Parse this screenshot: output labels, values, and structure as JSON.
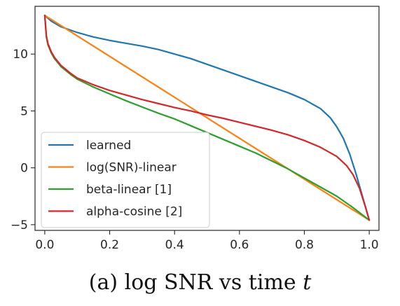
{
  "chart_data": {
    "type": "line",
    "title": "",
    "xlabel": "",
    "ylabel": "",
    "xlim": [
      -0.03,
      1.03
    ],
    "ylim": [
      -5.5,
      14.2
    ],
    "x_ticks": [
      0.0,
      0.2,
      0.4,
      0.6,
      0.8,
      1.0
    ],
    "x_tick_labels": [
      "0.0",
      "0.2",
      "0.4",
      "0.6",
      "0.8",
      "1.0"
    ],
    "y_ticks": [
      -5,
      0,
      5,
      10
    ],
    "y_tick_labels": [
      "−5",
      "0",
      "5",
      "10"
    ],
    "grid": false,
    "legend_position": "lower-left",
    "series": [
      {
        "name": "learned",
        "color": "#1f77b4",
        "points": [
          [
            0.0,
            13.4
          ],
          [
            0.02,
            12.9
          ],
          [
            0.05,
            12.4
          ],
          [
            0.1,
            11.9
          ],
          [
            0.15,
            11.5
          ],
          [
            0.2,
            11.2
          ],
          [
            0.25,
            10.95
          ],
          [
            0.3,
            10.7
          ],
          [
            0.35,
            10.4
          ],
          [
            0.4,
            10.0
          ],
          [
            0.45,
            9.6
          ],
          [
            0.5,
            9.1
          ],
          [
            0.55,
            8.6
          ],
          [
            0.6,
            8.1
          ],
          [
            0.65,
            7.6
          ],
          [
            0.7,
            7.1
          ],
          [
            0.75,
            6.6
          ],
          [
            0.8,
            6.0
          ],
          [
            0.85,
            5.2
          ],
          [
            0.88,
            4.4
          ],
          [
            0.9,
            3.6
          ],
          [
            0.92,
            2.6
          ],
          [
            0.94,
            1.2
          ],
          [
            0.96,
            -0.6
          ],
          [
            0.98,
            -2.6
          ],
          [
            0.99,
            -3.6
          ],
          [
            1.0,
            -4.6
          ]
        ]
      },
      {
        "name": "log(SNR)-linear",
        "color": "#ff7f0e",
        "points": [
          [
            0.0,
            13.4
          ],
          [
            1.0,
            -4.6
          ]
        ]
      },
      {
        "name": "beta-linear [1]",
        "color": "#2ca02c",
        "points": [
          [
            0.0,
            13.4
          ],
          [
            0.005,
            11.5
          ],
          [
            0.01,
            10.8
          ],
          [
            0.02,
            10.1
          ],
          [
            0.03,
            9.6
          ],
          [
            0.05,
            8.9
          ],
          [
            0.08,
            8.2
          ],
          [
            0.1,
            7.8
          ],
          [
            0.15,
            7.1
          ],
          [
            0.2,
            6.5
          ],
          [
            0.25,
            5.9
          ],
          [
            0.3,
            5.35
          ],
          [
            0.35,
            4.8
          ],
          [
            0.4,
            4.3
          ],
          [
            0.45,
            3.7
          ],
          [
            0.5,
            3.1
          ],
          [
            0.55,
            2.5
          ],
          [
            0.6,
            1.9
          ],
          [
            0.65,
            1.3
          ],
          [
            0.7,
            0.6
          ],
          [
            0.75,
            -0.1
          ],
          [
            0.8,
            -0.9
          ],
          [
            0.85,
            -1.7
          ],
          [
            0.9,
            -2.5
          ],
          [
            0.95,
            -3.5
          ],
          [
            1.0,
            -4.6
          ]
        ]
      },
      {
        "name": "alpha-cosine [2]",
        "color": "#d62728",
        "points": [
          [
            0.0,
            13.4
          ],
          [
            0.005,
            11.6
          ],
          [
            0.01,
            10.9
          ],
          [
            0.02,
            10.2
          ],
          [
            0.03,
            9.7
          ],
          [
            0.05,
            9.0
          ],
          [
            0.08,
            8.3
          ],
          [
            0.1,
            7.9
          ],
          [
            0.15,
            7.3
          ],
          [
            0.2,
            6.8
          ],
          [
            0.25,
            6.4
          ],
          [
            0.3,
            6.0
          ],
          [
            0.35,
            5.65
          ],
          [
            0.4,
            5.3
          ],
          [
            0.45,
            5.0
          ],
          [
            0.5,
            4.65
          ],
          [
            0.55,
            4.35
          ],
          [
            0.6,
            4.0
          ],
          [
            0.65,
            3.65
          ],
          [
            0.7,
            3.3
          ],
          [
            0.75,
            2.9
          ],
          [
            0.8,
            2.4
          ],
          [
            0.85,
            1.8
          ],
          [
            0.9,
            1.0
          ],
          [
            0.93,
            0.2
          ],
          [
            0.95,
            -0.6
          ],
          [
            0.97,
            -1.8
          ],
          [
            0.99,
            -3.6
          ],
          [
            1.0,
            -4.6
          ]
        ]
      }
    ]
  },
  "caption": {
    "prefix": "(a) ",
    "text": "log SNR vs time ",
    "var": "t"
  }
}
